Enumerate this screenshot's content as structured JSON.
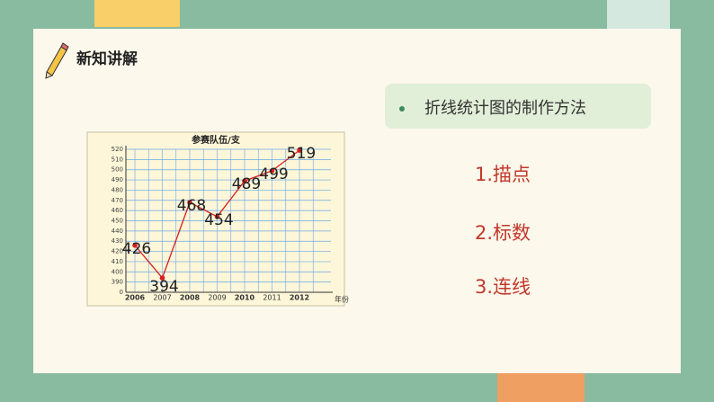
{
  "header": {
    "title": "新知讲解"
  },
  "bullet": "折线统计图的制作方法",
  "steps": [
    "1.描点",
    "2.标数",
    "3.连线"
  ],
  "chart_data": {
    "type": "line",
    "title": "参赛队伍/支",
    "x_label": "年份",
    "categories": [
      "2006",
      "2007",
      "2008",
      "2009",
      "2010",
      "2011",
      "2012"
    ],
    "values": [
      426,
      394,
      468,
      454,
      489,
      499,
      519
    ],
    "color": "#d62020",
    "ylim": [
      380,
      520
    ],
    "yticks": [
      0,
      390,
      400,
      410,
      420,
      430,
      440,
      450,
      460,
      470,
      480,
      490,
      500,
      510,
      520
    ],
    "axis_break": true,
    "grid": true
  }
}
